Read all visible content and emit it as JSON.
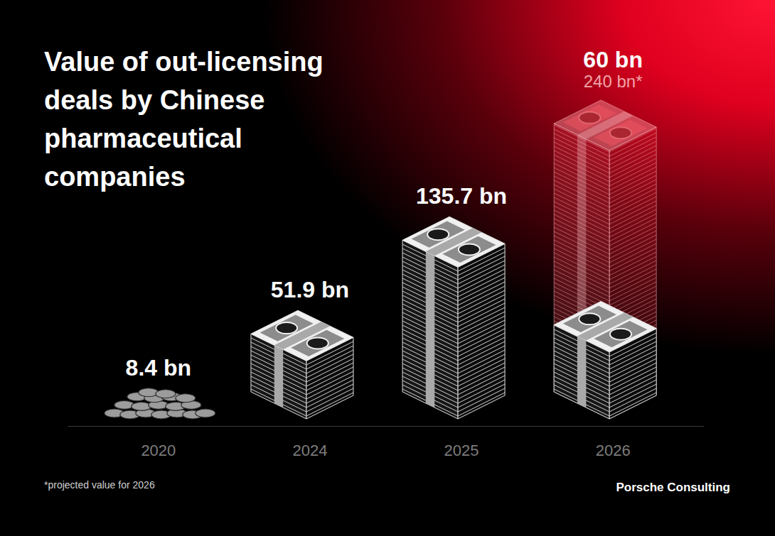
{
  "chart_data": {
    "type": "bar",
    "title": "Value of out-licensing deals by Chinese pharmaceutical companies",
    "categories": [
      "2020",
      "2024",
      "2025",
      "2026"
    ],
    "values": [
      8.4,
      51.9,
      135.7,
      60
    ],
    "value_labels": [
      "8.4 bn",
      "51.9 bn",
      "135.7 bn",
      "60 bn"
    ],
    "projected_values": [
      null,
      null,
      null,
      240
    ],
    "projected_value_labels": [
      null,
      null,
      null,
      "240 bn*"
    ],
    "data_labels": true,
    "tick_labels": "x",
    "footnote": "*projected value for 2026",
    "source": "Porsche Consulting"
  }
}
